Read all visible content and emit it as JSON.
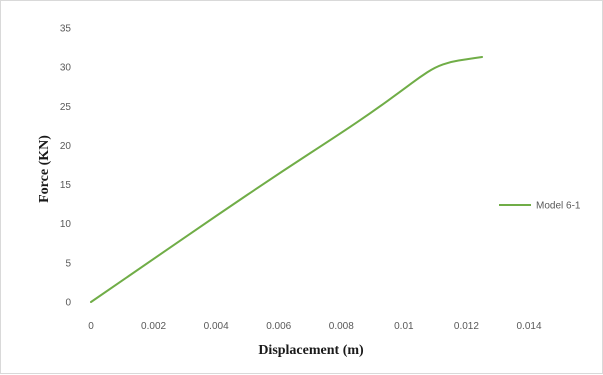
{
  "chart_data": {
    "type": "line",
    "title": "",
    "xlabel": "Displacement (m)",
    "ylabel": "Force (KN)",
    "xlim": [
      0,
      0.014
    ],
    "ylim": [
      0,
      35
    ],
    "x_ticks": [
      "0",
      "0.002",
      "0.004",
      "0.006",
      "0.008",
      "0.01",
      "0.012",
      "0.014"
    ],
    "y_ticks": [
      "0",
      "5",
      "10",
      "15",
      "20",
      "25",
      "30",
      "35"
    ],
    "grid": false,
    "legend_position": "right",
    "series": [
      {
        "name": "Model 6-1",
        "color": "#70ad47",
        "x": [
          0,
          0.002,
          0.004,
          0.006,
          0.008,
          0.009,
          0.01,
          0.0105,
          0.011,
          0.0115,
          0.012,
          0.0125
        ],
        "y": [
          0,
          5.5,
          11,
          16.4,
          21.6,
          24.3,
          27.2,
          28.7,
          30.0,
          30.7,
          31.0,
          31.3
        ]
      }
    ]
  }
}
